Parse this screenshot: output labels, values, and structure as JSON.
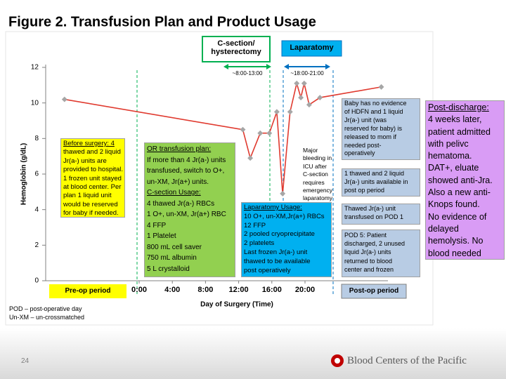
{
  "header": {
    "title": "Figure 2. Transfusion Plan and Product Usage"
  },
  "chart_data": {
    "type": "line",
    "xlabel": "Day of Surgery (Time)",
    "ylabel": "Hemoglobin (g/dL)",
    "x": [
      -9,
      12.5,
      13.4,
      14.6,
      15.7,
      16.6,
      17.3,
      18.2,
      19,
      19.5,
      19.9,
      20.5,
      21.8,
      29.2
    ],
    "values": [
      10.2,
      8.5,
      6.9,
      8.3,
      8.3,
      9.5,
      4.9,
      9.5,
      11.1,
      10.3,
      11.1,
      9.9,
      10.3,
      10.9
    ],
    "color": "#e03a2f",
    "marker_color": "#a6a6a6",
    "xlim": [
      -11,
      30
    ],
    "ylim": [
      0,
      12
    ],
    "xticks": [
      {
        "value": 0,
        "label": "0:00"
      },
      {
        "value": 4,
        "label": "4:00"
      },
      {
        "value": 8,
        "label": "8:00"
      },
      {
        "value": 12,
        "label": "12:00"
      },
      {
        "value": 16,
        "label": "16:00"
      },
      {
        "value": 20,
        "label": "20:00"
      }
    ],
    "yticks": [
      0,
      2,
      4,
      6,
      8,
      10,
      12
    ]
  },
  "periods": {
    "csection": "C-section/ hysterectomy",
    "csection_time": "~8:00-13:00",
    "laparatomy": "Laparatomy",
    "laparatomy_time": "~18:00-21:00",
    "preop": "Pre-op period",
    "postop": "Post-op period"
  },
  "annotations": [
    [
      "Before surgery: 4",
      "thawed and 2 liquid",
      "Jr(a-) units are",
      "provided to hospital.",
      "1 frozen unit stayed",
      "at blood center. Per",
      "plan 1 liquid unit",
      "would be reserved",
      "for baby if needed."
    ],
    [
      "OR transfusion plan:",
      "If more than 4 Jr(a-) units",
      "transfused, switch to O+,",
      "un-XM, Jr(a+) units.",
      "C-section Usage:",
      "4 thawed Jr(a-) RBCs",
      "1 O+, un-XM, Jr(a+) RBC",
      "4 FFP",
      "1 Platelet",
      "800 mL cell saver",
      "750 mL albumin",
      "5 L crystalloid"
    ],
    [
      "Laparatomy Usage:",
      "10 O+, un-XM,Jr(a+) RBCs",
      "12 FFP",
      "2 pooled cryoprecipitate",
      "2 platelets",
      "Last frozen Jr(a-) unit",
      "thawed to be available",
      "post operatively"
    ],
    [
      "Major",
      "bleeding in",
      "ICU after",
      "C-section",
      "requires",
      "emergency",
      "laparatomy"
    ],
    [
      "Baby has no evidence",
      "of HDFN and 1 liquid",
      "Jr(a-) unit (was",
      "reserved for baby) is",
      "released to mom if",
      "needed post-",
      "operatively"
    ],
    [
      "1 thawed and 2 liquid",
      "Jr(a-) units available in",
      "post op period"
    ],
    [
      "Thawed Jr(a-) unit",
      "transfused on POD 1"
    ],
    [
      "POD 5: Patient",
      "discharged, 2 unused",
      "liquid Jr(a-) units",
      "returned to blood",
      "center and frozen"
    ],
    [
      "Post-discharge:",
      "4 weeks later,",
      "patient admitted",
      "with pelivc",
      "hematoma.",
      "DAT+, eluate",
      "showed anti-Jra.",
      "Also a new anti-",
      "Knops found.",
      "No evidence of",
      "delayed",
      "hemolysis. No",
      "blood needed"
    ]
  ],
  "footnotes": [
    "POD – post-operative day",
    "Un-XM – un-crossmatched"
  ],
  "footer": {
    "page": "24",
    "logo": "Blood Centers of the Pacific"
  }
}
